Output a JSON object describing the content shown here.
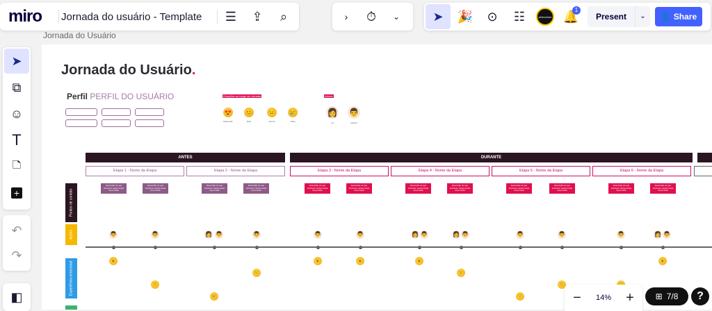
{
  "app": {
    "logo": "miro",
    "board_title": "Jornada do usuário - Template",
    "breadcrumb": "Jornada do Usuário"
  },
  "toolbar_right": {
    "present_label": "Present",
    "share_label": "Share",
    "notification_count": "1",
    "avatar_text": "seleccione"
  },
  "zoom": {
    "level": "14%",
    "minus": "−",
    "plus": "+",
    "frames": "7/8",
    "help": "?"
  },
  "board": {
    "title": "Jornada do Usuário",
    "title_dot": ".",
    "accent": "#e0104f",
    "profile_label": "Perfil",
    "profile_value": "PERFIL DO USUÁRIO",
    "emotions_header": "Emoções ao longo da Jornada",
    "emotions": [
      {
        "icon": "😍",
        "label": "Muito feliz"
      },
      {
        "icon": "😊",
        "label": "Feliz"
      },
      {
        "icon": "😐",
        "label": "Neutro"
      },
      {
        "icon": "😢",
        "label": "Triste"
      }
    ],
    "actors_header": "Atores",
    "actors": [
      {
        "icon": "👩",
        "label": "Lá"
      },
      {
        "icon": "👨",
        "label": "Cliente"
      }
    ],
    "phases": [
      {
        "label": "ANTES"
      },
      {
        "label": "DURANTE"
      },
      {
        "label": ""
      }
    ],
    "etapas": [
      "Etapa 1 - Nome da Etapa",
      "Etapa 2 - Nome da Etapa",
      "Etapa 3 - Nome da Etapa",
      "Etapa 4 - Nome da Etapa",
      "Etapa 5 - Nome da Etapa",
      "Etapa 6 - Nome da Etapa",
      ""
    ],
    "card_text": "Descrição do que acontece nessa etapa da jornada",
    "card_colors": {
      "antes": "#8e5a87",
      "durante": "#e0104f"
    },
    "row_labels": [
      {
        "label": "Pontos de contato",
        "color": "#2a1521"
      },
      {
        "label": "Ações",
        "color": "#f5b800"
      },
      {
        "label": "Experiência emocional",
        "color": "#2f9be8"
      }
    ]
  }
}
